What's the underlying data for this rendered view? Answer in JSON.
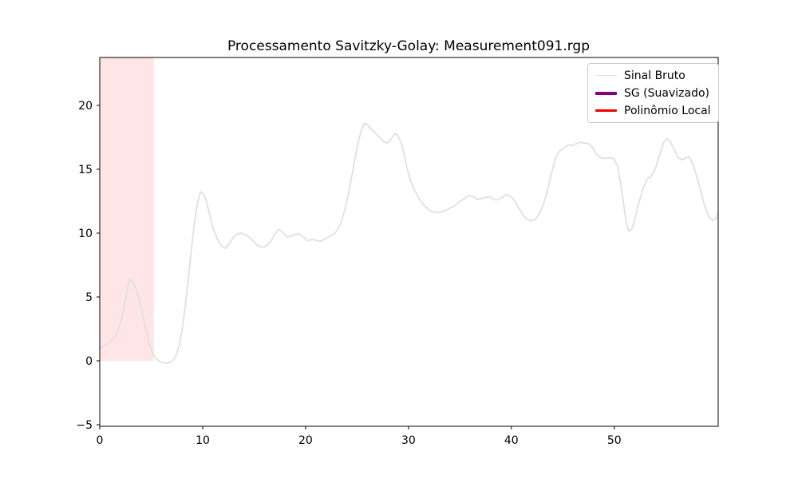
{
  "chart_data": {
    "type": "line",
    "title": "Processamento Savitzky-Golay: Measurement091.rgp",
    "xlabel": "",
    "ylabel": "",
    "xlim": [
      0,
      60.1
    ],
    "ylim": [
      -5.125,
      23.75
    ],
    "x_ticks": [
      0,
      10,
      20,
      30,
      40,
      50
    ],
    "y_ticks": [
      -5,
      0,
      5,
      10,
      15,
      20
    ],
    "grid": false,
    "legend_position": "upper right",
    "background_color": "#ffffff",
    "spine_color": "#000000",
    "spans": [
      {
        "name": "sg-window",
        "x0": 0,
        "x1": 5.25,
        "y0": 0,
        "y1": 23.75,
        "color": "#ff0000",
        "alpha": 0.1
      }
    ],
    "series": [
      {
        "name": "Sinal Bruto",
        "color": "#e0e0e0",
        "linewidth": 1.8,
        "points": [
          [
            0,
            0.9
          ],
          [
            0.35,
            1.15
          ],
          [
            0.7,
            1.3
          ],
          [
            1.05,
            1.5
          ],
          [
            1.4,
            1.8
          ],
          [
            1.75,
            2.35
          ],
          [
            2.1,
            3.2
          ],
          [
            2.45,
            4.5
          ],
          [
            2.75,
            5.9
          ],
          [
            2.95,
            6.35
          ],
          [
            3.2,
            6.2
          ],
          [
            3.5,
            5.7
          ],
          [
            3.8,
            4.9
          ],
          [
            4.1,
            3.9
          ],
          [
            4.45,
            2.6
          ],
          [
            4.8,
            1.4
          ],
          [
            5.1,
            0.7
          ],
          [
            5.4,
            0.25
          ],
          [
            5.75,
            0
          ],
          [
            6.1,
            -0.15
          ],
          [
            6.5,
            -0.18
          ],
          [
            6.9,
            -0.1
          ],
          [
            7.3,
            0.2
          ],
          [
            7.7,
            1.1
          ],
          [
            8.0,
            2.4
          ],
          [
            8.3,
            4.2
          ],
          [
            8.6,
            6.4
          ],
          [
            8.9,
            8.7
          ],
          [
            9.2,
            10.8
          ],
          [
            9.5,
            12.3
          ],
          [
            9.8,
            13.25
          ],
          [
            10.1,
            13.1
          ],
          [
            10.4,
            12.4
          ],
          [
            10.7,
            11.4
          ],
          [
            11.0,
            10.4
          ],
          [
            11.4,
            9.6
          ],
          [
            11.8,
            9.0
          ],
          [
            12.2,
            8.8
          ],
          [
            12.6,
            9.2
          ],
          [
            13.0,
            9.7
          ],
          [
            13.4,
            9.95
          ],
          [
            13.8,
            10.0
          ],
          [
            14.2,
            9.85
          ],
          [
            14.6,
            9.65
          ],
          [
            15.0,
            9.3
          ],
          [
            15.4,
            9.0
          ],
          [
            15.8,
            8.9
          ],
          [
            16.2,
            9.0
          ],
          [
            16.6,
            9.35
          ],
          [
            17.0,
            9.9
          ],
          [
            17.4,
            10.3
          ],
          [
            17.8,
            10.05
          ],
          [
            18.2,
            9.7
          ],
          [
            18.6,
            9.75
          ],
          [
            19.0,
            9.9
          ],
          [
            19.4,
            9.95
          ],
          [
            19.8,
            9.7
          ],
          [
            20.2,
            9.4
          ],
          [
            20.6,
            9.5
          ],
          [
            21.0,
            9.45
          ],
          [
            21.4,
            9.35
          ],
          [
            21.8,
            9.5
          ],
          [
            22.2,
            9.7
          ],
          [
            22.6,
            9.85
          ],
          [
            23.0,
            10.15
          ],
          [
            23.4,
            10.7
          ],
          [
            23.8,
            11.8
          ],
          [
            24.2,
            13.2
          ],
          [
            24.6,
            14.9
          ],
          [
            25.0,
            16.7
          ],
          [
            25.4,
            18.0
          ],
          [
            25.7,
            18.6
          ],
          [
            26.0,
            18.5
          ],
          [
            26.4,
            18.1
          ],
          [
            26.8,
            17.85
          ],
          [
            27.2,
            17.5
          ],
          [
            27.6,
            17.15
          ],
          [
            28.0,
            17.05
          ],
          [
            28.4,
            17.45
          ],
          [
            28.7,
            17.8
          ],
          [
            29.0,
            17.6
          ],
          [
            29.4,
            16.8
          ],
          [
            29.8,
            15.3
          ],
          [
            30.2,
            14.1
          ],
          [
            30.6,
            13.35
          ],
          [
            31.0,
            12.75
          ],
          [
            31.5,
            12.2
          ],
          [
            32.0,
            11.8
          ],
          [
            32.4,
            11.65
          ],
          [
            32.9,
            11.6
          ],
          [
            33.4,
            11.7
          ],
          [
            33.9,
            11.9
          ],
          [
            34.4,
            12.1
          ],
          [
            34.9,
            12.4
          ],
          [
            35.4,
            12.7
          ],
          [
            35.9,
            12.95
          ],
          [
            36.3,
            12.85
          ],
          [
            36.7,
            12.65
          ],
          [
            37.1,
            12.7
          ],
          [
            37.5,
            12.8
          ],
          [
            37.9,
            12.85
          ],
          [
            38.3,
            12.65
          ],
          [
            38.7,
            12.6
          ],
          [
            39.1,
            12.8
          ],
          [
            39.5,
            13.0
          ],
          [
            39.9,
            12.9
          ],
          [
            40.3,
            12.55
          ],
          [
            40.7,
            12.0
          ],
          [
            41.1,
            11.45
          ],
          [
            41.5,
            11.1
          ],
          [
            41.9,
            10.95
          ],
          [
            42.3,
            11.05
          ],
          [
            42.7,
            11.5
          ],
          [
            43.1,
            12.2
          ],
          [
            43.5,
            13.3
          ],
          [
            43.9,
            14.7
          ],
          [
            44.3,
            15.9
          ],
          [
            44.7,
            16.45
          ],
          [
            45.1,
            16.65
          ],
          [
            45.5,
            16.9
          ],
          [
            45.9,
            16.85
          ],
          [
            46.3,
            17.0
          ],
          [
            46.7,
            17.1
          ],
          [
            47.1,
            17.05
          ],
          [
            47.5,
            17.0
          ],
          [
            47.9,
            16.7
          ],
          [
            48.3,
            16.15
          ],
          [
            48.7,
            15.9
          ],
          [
            49.1,
            15.85
          ],
          [
            49.5,
            15.9
          ],
          [
            49.9,
            15.85
          ],
          [
            50.3,
            15.3
          ],
          [
            50.6,
            14.0
          ],
          [
            50.9,
            12.3
          ],
          [
            51.15,
            10.9
          ],
          [
            51.4,
            10.15
          ],
          [
            51.7,
            10.3
          ],
          [
            52.0,
            11.1
          ],
          [
            52.4,
            12.4
          ],
          [
            52.8,
            13.5
          ],
          [
            53.2,
            14.25
          ],
          [
            53.6,
            14.45
          ],
          [
            54.0,
            15.05
          ],
          [
            54.4,
            16.1
          ],
          [
            54.8,
            17.1
          ],
          [
            55.1,
            17.4
          ],
          [
            55.4,
            17.2
          ],
          [
            55.8,
            16.6
          ],
          [
            56.2,
            15.9
          ],
          [
            56.6,
            15.75
          ],
          [
            56.9,
            15.85
          ],
          [
            57.2,
            16.0
          ],
          [
            57.6,
            15.5
          ],
          [
            58.0,
            14.5
          ],
          [
            58.4,
            13.3
          ],
          [
            58.8,
            12.1
          ],
          [
            59.2,
            11.25
          ],
          [
            59.6,
            11.0
          ],
          [
            59.9,
            11.15
          ],
          [
            60.1,
            11.6
          ]
        ]
      },
      {
        "name": "SG (Suavizado)",
        "color": "#800080",
        "linewidth": 4,
        "points": []
      },
      {
        "name": "Polinômio Local",
        "color": "#ee0000",
        "linewidth": 2.2,
        "points": []
      }
    ]
  }
}
